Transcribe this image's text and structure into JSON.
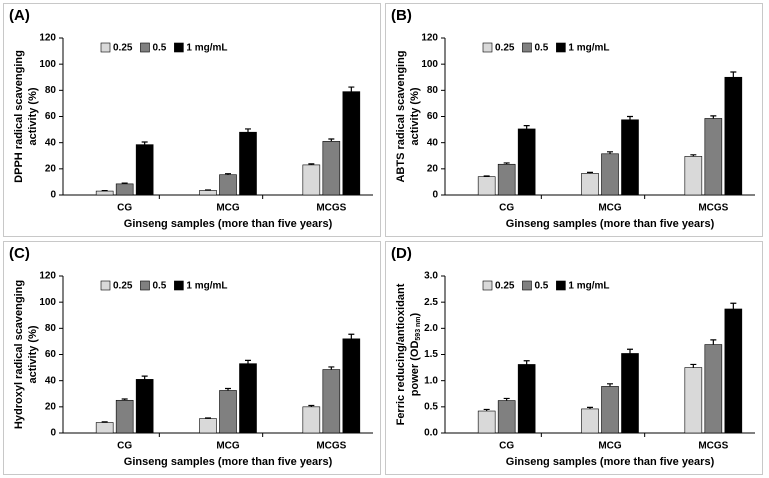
{
  "chart_data": [
    {
      "type": "bar",
      "title": "(A)",
      "ylabel": [
        "DPPH radical scavenging",
        "activity (%)"
      ],
      "xlabel": "Ginseng samples (more than five years)",
      "categories": [
        "CG",
        "MCG",
        "MCGS"
      ],
      "ylim": [
        0,
        120
      ],
      "yticks": [
        0,
        20,
        40,
        60,
        80,
        100,
        120
      ],
      "series": [
        {
          "name": "0.25",
          "color": "#d9d9d9",
          "values": [
            3,
            3.5,
            23
          ],
          "errors": [
            0.4,
            0.3,
            0.8
          ]
        },
        {
          "name": "0.5",
          "color": "#808080",
          "values": [
            8.5,
            15.5,
            41
          ],
          "errors": [
            0.6,
            0.8,
            1.8
          ]
        },
        {
          "name": "1 mg/mL",
          "color": "#000000",
          "values": [
            38.5,
            48,
            79
          ],
          "errors": [
            2,
            2.5,
            3.5
          ]
        }
      ]
    },
    {
      "type": "bar",
      "title": "(B)",
      "ylabel": [
        "ABTS radical scavenging",
        "activity (%)"
      ],
      "xlabel": "Ginseng samples (more than five years)",
      "categories": [
        "CG",
        "MCG",
        "MCGS"
      ],
      "ylim": [
        0,
        120
      ],
      "yticks": [
        0,
        20,
        40,
        60,
        80,
        100,
        120
      ],
      "series": [
        {
          "name": "0.25",
          "color": "#d9d9d9",
          "values": [
            14,
            16.5,
            29.5
          ],
          "errors": [
            0.5,
            0.8,
            1.2
          ]
        },
        {
          "name": "0.5",
          "color": "#808080",
          "values": [
            23.5,
            31.5,
            58.5
          ],
          "errors": [
            1,
            1.5,
            2
          ]
        },
        {
          "name": "1 mg/mL",
          "color": "#000000",
          "values": [
            50.5,
            57.5,
            90
          ],
          "errors": [
            2.5,
            2.5,
            4
          ]
        }
      ]
    },
    {
      "type": "bar",
      "title": "(C)",
      "ylabel": [
        "Hydroxyl radical scavenging",
        "activity (%)"
      ],
      "xlabel": "Ginseng samples (more than five years)",
      "categories": [
        "CG",
        "MCG",
        "MCGS"
      ],
      "ylim": [
        0,
        120
      ],
      "yticks": [
        0,
        20,
        40,
        60,
        80,
        100,
        120
      ],
      "series": [
        {
          "name": "0.25",
          "color": "#d9d9d9",
          "values": [
            8,
            11,
            20
          ],
          "errors": [
            0.5,
            0.5,
            1
          ]
        },
        {
          "name": "0.5",
          "color": "#808080",
          "values": [
            25,
            32.5,
            48.5
          ],
          "errors": [
            1,
            1.5,
            2
          ]
        },
        {
          "name": "1 mg/mL",
          "color": "#000000",
          "values": [
            41,
            53,
            72
          ],
          "errors": [
            2.5,
            2.5,
            3.5
          ]
        }
      ]
    },
    {
      "type": "bar",
      "title": "(D)",
      "ylabel": [
        "Ferric reducing/antioxidant",
        "power (OD"
      ],
      "ylabel_sub": "593 nm",
      "ylabel_end": ")",
      "xlabel": "Ginseng samples (more than five years)",
      "categories": [
        "CG",
        "MCG",
        "MCGS"
      ],
      "ylim": [
        0,
        3
      ],
      "yticks": [
        {
          "value": 0,
          "label": "0.0"
        },
        0.5,
        {
          "value": 1,
          "label": "1.0"
        },
        1.5,
        {
          "value": 2,
          "label": "2.0"
        },
        2.5,
        {
          "value": 3,
          "label": "3.0"
        }
      ],
      "series": [
        {
          "name": "0.25",
          "color": "#d9d9d9",
          "values": [
            0.42,
            0.46,
            1.25
          ],
          "errors": [
            0.03,
            0.03,
            0.06
          ]
        },
        {
          "name": "0.5",
          "color": "#808080",
          "values": [
            0.62,
            0.89,
            1.69
          ],
          "errors": [
            0.04,
            0.05,
            0.09
          ]
        },
        {
          "name": "1 mg/mL",
          "color": "#000000",
          "values": [
            1.31,
            1.52,
            2.37
          ],
          "errors": [
            0.07,
            0.08,
            0.11
          ]
        }
      ]
    }
  ]
}
